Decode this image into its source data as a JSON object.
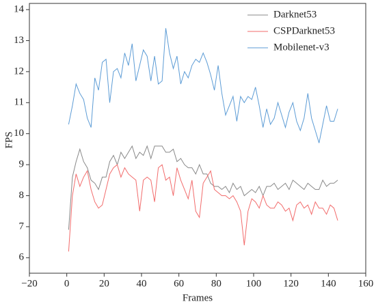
{
  "chart_data": {
    "type": "line",
    "x_label": "Frames",
    "y_label": "FPS",
    "x": [
      1,
      3,
      5,
      7,
      9,
      11,
      13,
      15,
      17,
      19,
      21,
      23,
      25,
      27,
      29,
      31,
      33,
      35,
      37,
      39,
      41,
      43,
      45,
      47,
      49,
      51,
      53,
      55,
      57,
      59,
      61,
      63,
      65,
      67,
      69,
      71,
      73,
      75,
      77,
      79,
      81,
      83,
      85,
      87,
      89,
      91,
      93,
      95,
      97,
      99,
      101,
      103,
      105,
      107,
      109,
      111,
      113,
      115,
      117,
      119,
      121,
      123,
      125,
      127,
      129,
      131,
      133,
      135,
      137,
      139,
      141,
      143,
      145
    ],
    "series": [
      {
        "name": "Darknet53",
        "color": "#888888",
        "values": [
          6.9,
          8.6,
          9.1,
          9.5,
          9.1,
          8.9,
          8.5,
          8.4,
          8.2,
          8.6,
          8.6,
          9.1,
          9.3,
          9.0,
          9.4,
          9.2,
          9.4,
          9.6,
          9.2,
          9.4,
          9.3,
          9.6,
          9.2,
          9.6,
          9.6,
          9.6,
          9.4,
          9.4,
          9.5,
          9.1,
          9.2,
          9.0,
          8.9,
          8.9,
          8.7,
          9.0,
          8.7,
          8.7,
          8.4,
          8.3,
          8.3,
          8.2,
          8.3,
          8.1,
          8.4,
          8.2,
          8.3,
          8.0,
          8.1,
          8.2,
          8.1,
          8.3,
          8.0,
          8.3,
          8.3,
          8.4,
          8.2,
          8.3,
          8.4,
          8.2,
          8.5,
          8.4,
          8.3,
          8.2,
          8.4,
          8.3,
          8.2,
          8.2,
          8.5,
          8.3,
          8.4,
          8.4,
          8.5
        ]
      },
      {
        "name": "CSPDarknet53",
        "color": "#f26b6b",
        "values": [
          6.2,
          8.0,
          8.7,
          8.3,
          8.6,
          8.8,
          8.2,
          7.8,
          7.6,
          7.7,
          8.2,
          8.7,
          8.9,
          9.0,
          8.6,
          8.9,
          8.7,
          8.6,
          8.5,
          7.5,
          8.5,
          8.6,
          8.5,
          7.8,
          8.9,
          9.0,
          8.5,
          8.6,
          8.0,
          8.9,
          8.5,
          8.2,
          7.9,
          8.5,
          7.5,
          7.3,
          8.4,
          8.6,
          8.8,
          8.2,
          8.1,
          8.0,
          8.0,
          7.9,
          8.0,
          7.8,
          7.5,
          6.4,
          7.5,
          7.9,
          7.8,
          7.6,
          8.0,
          7.7,
          7.6,
          7.6,
          7.8,
          7.7,
          7.5,
          7.6,
          7.2,
          7.7,
          7.8,
          7.6,
          7.7,
          7.4,
          7.8,
          7.6,
          7.6,
          7.4,
          7.7,
          7.6,
          7.2
        ]
      },
      {
        "name": "Mobilenet-v3",
        "color": "#5b9bd5",
        "values": [
          10.3,
          10.9,
          11.6,
          11.3,
          11.1,
          10.5,
          10.2,
          11.8,
          11.4,
          12.3,
          12.4,
          11.0,
          12.0,
          12.1,
          11.8,
          12.6,
          12.2,
          12.9,
          11.7,
          12.2,
          12.7,
          12.5,
          11.7,
          12.5,
          11.6,
          11.7,
          13.4,
          12.6,
          12.1,
          12.5,
          11.6,
          12.0,
          11.8,
          12.2,
          12.4,
          12.3,
          12.6,
          12.3,
          11.9,
          11.4,
          12.2,
          11.3,
          10.6,
          10.9,
          11.2,
          10.4,
          11.2,
          11.0,
          11.2,
          11.1,
          11.5,
          10.9,
          10.2,
          10.8,
          10.3,
          10.5,
          11.0,
          10.6,
          10.2,
          10.7,
          11.0,
          10.4,
          10.1,
          10.5,
          11.3,
          10.5,
          10.1,
          9.7,
          10.3,
          10.9,
          10.4,
          10.4,
          10.8
        ]
      }
    ],
    "xlim": [
      -20,
      160
    ],
    "ylim": [
      5.5,
      14.2
    ],
    "xticks": [
      {
        "value": -20,
        "label": "−20"
      },
      0,
      20,
      40,
      60,
      80,
      100,
      120,
      140,
      160
    ],
    "yticks": [
      6,
      7,
      8,
      9,
      10,
      11,
      12,
      13,
      14
    ],
    "grid": false,
    "legend": "upper right"
  }
}
